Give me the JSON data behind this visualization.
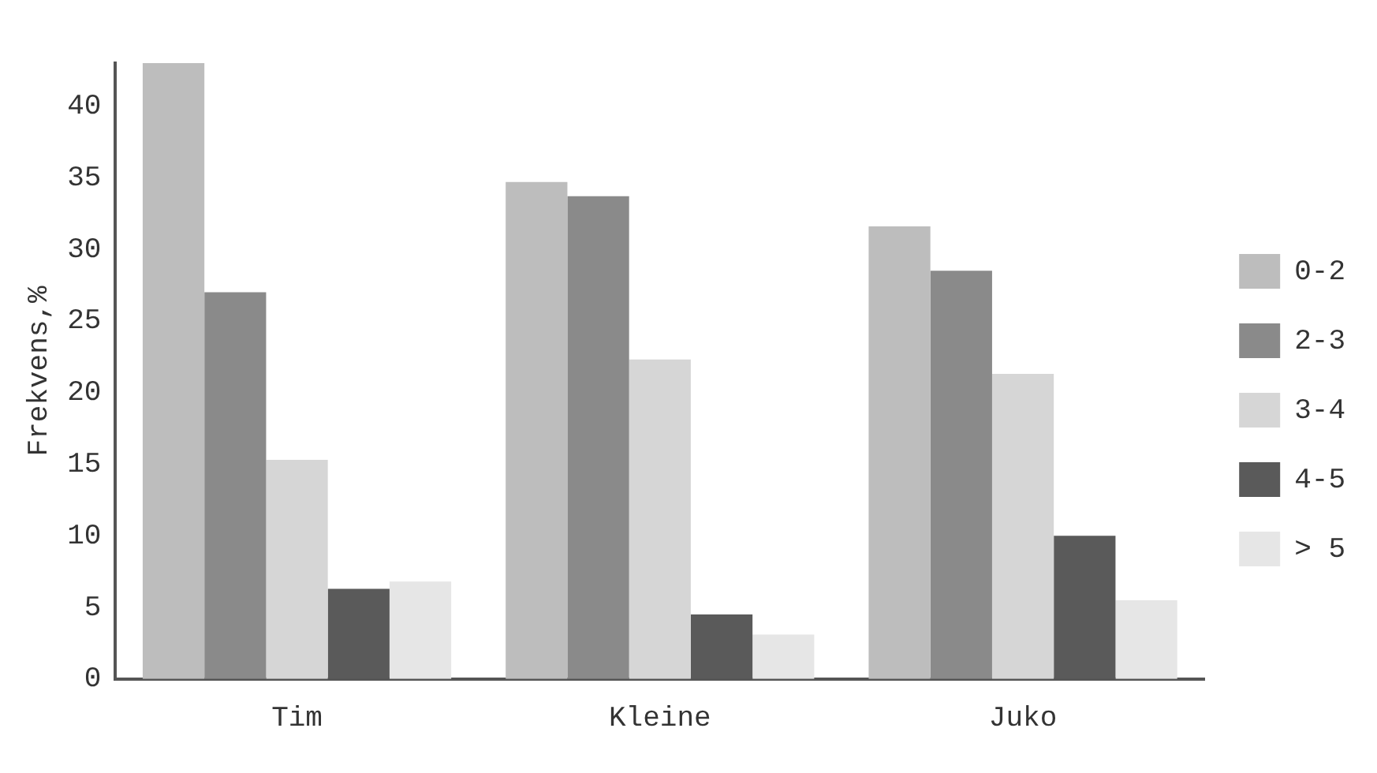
{
  "chart_data": {
    "type": "bar",
    "ylabel": "Frekvens,%",
    "categories": [
      "Tim",
      "Kleine",
      "Juko"
    ],
    "series": [
      {
        "name": "0-2",
        "color": "#bdbdbd",
        "values": [
          43,
          34.7,
          31.6
        ]
      },
      {
        "name": "2-3",
        "color": "#8a8a8a",
        "values": [
          27,
          33.7,
          28.5
        ]
      },
      {
        "name": "3-4",
        "color": "#d6d6d6",
        "values": [
          15.3,
          22.3,
          21.3
        ]
      },
      {
        "name": "4-5",
        "color": "#5a5a5a",
        "values": [
          6.3,
          4.5,
          10
        ]
      },
      {
        "name": "> 5",
        "color": "#e6e6e6",
        "values": [
          6.8,
          3.1,
          5.5
        ]
      }
    ],
    "ylim": [
      0,
      43
    ],
    "yticks": [
      0,
      5,
      10,
      15,
      20,
      25,
      30,
      35,
      40
    ],
    "grid": false,
    "legend": "right"
  }
}
